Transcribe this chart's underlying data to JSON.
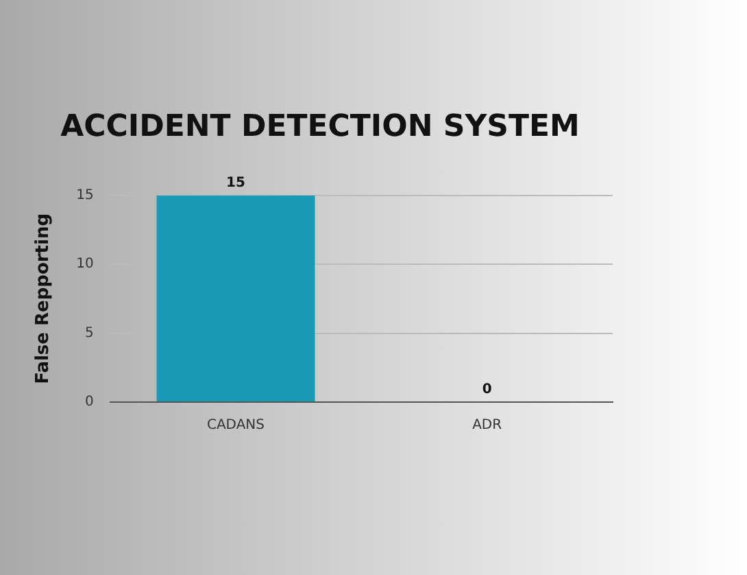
{
  "chart_data": {
    "type": "bar",
    "title": "ACCIDENT DETECTION SYSTEM",
    "ylabel": "False Repporting",
    "categories": [
      "CADANS",
      "ADR"
    ],
    "values": [
      15,
      0
    ],
    "color": "#1a9bb5",
    "ylim": [
      0,
      15
    ],
    "yticks": [
      0,
      5,
      10,
      15
    ],
    "grid": "y",
    "data_labels": true
  }
}
